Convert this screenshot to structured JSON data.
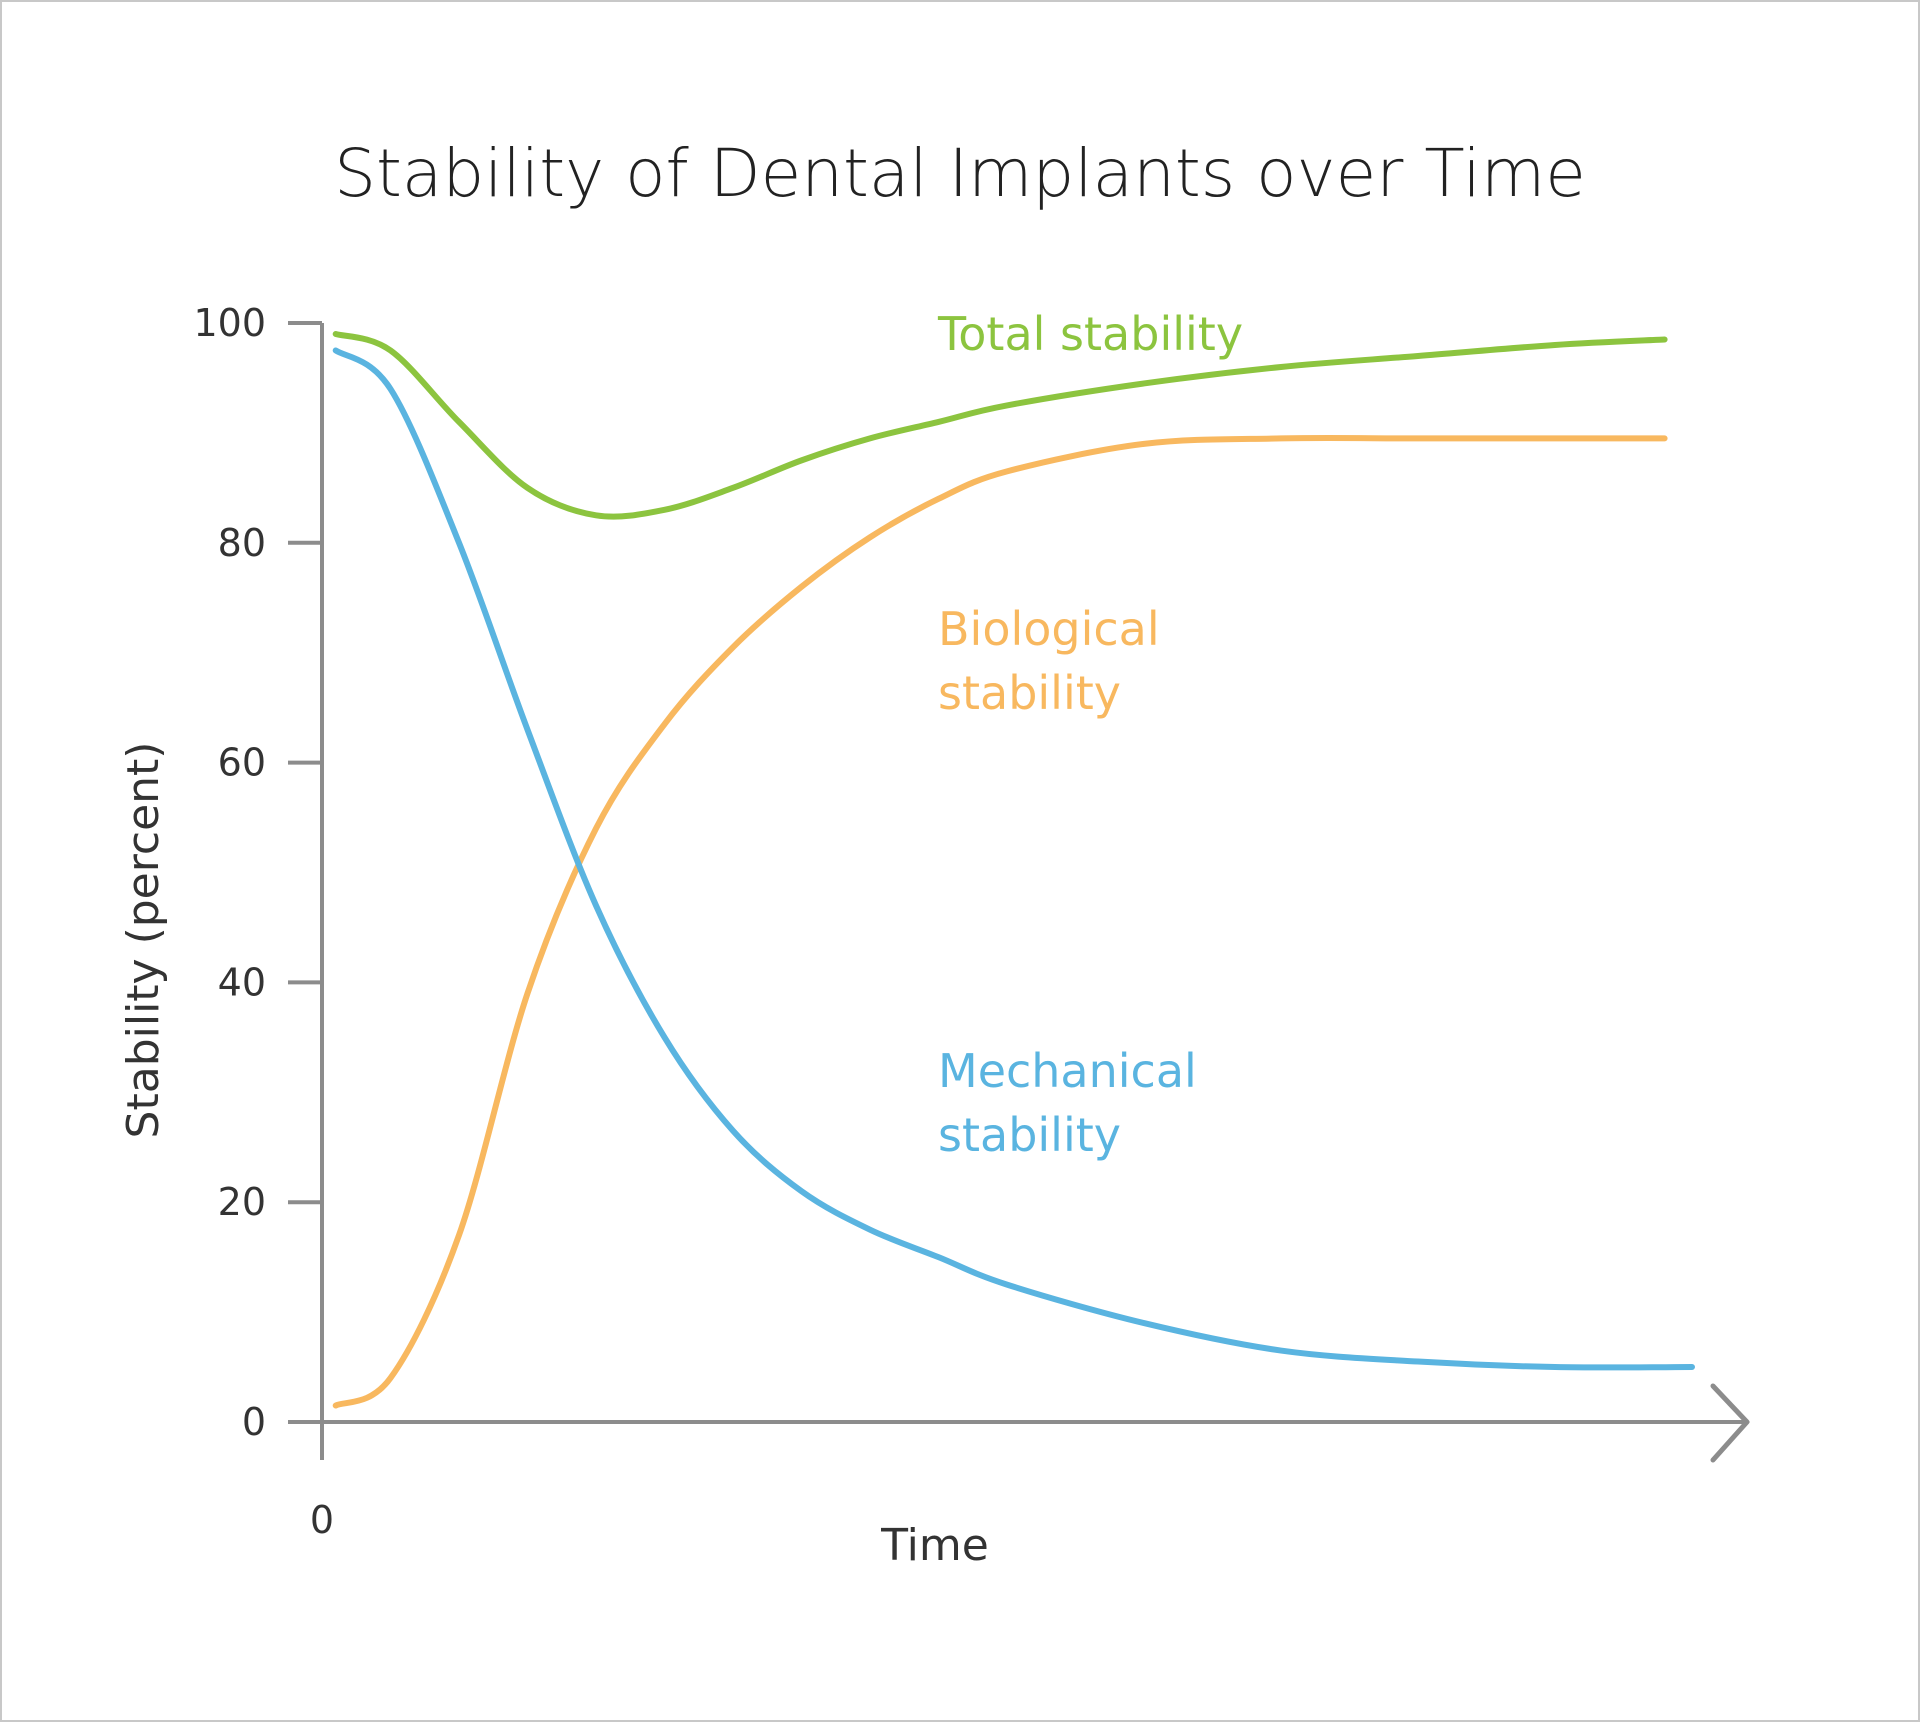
{
  "chart_data": {
    "type": "line",
    "title": "Stability of Dental Implants over Time",
    "xlabel": "Time",
    "ylabel": "Stability (percent)",
    "x_tick_labels": [
      "0"
    ],
    "y_ticks": [
      0,
      20,
      40,
      60,
      80,
      100
    ],
    "ylim": [
      0,
      100
    ],
    "grid": false,
    "series": [
      {
        "name": "Total stability",
        "label_lines": [
          "Total stability"
        ],
        "color": "#8cc43f",
        "x": [
          0.01,
          0.05,
          0.1,
          0.15,
          0.2,
          0.25,
          0.3,
          0.35,
          0.4,
          0.45,
          0.5,
          0.6,
          0.7,
          0.8,
          0.9,
          0.98
        ],
        "y": [
          99,
          97.5,
          91,
          85,
          82.5,
          83,
          85,
          87.5,
          89.5,
          91,
          92.5,
          94.5,
          96,
          97,
          98,
          98.5
        ]
      },
      {
        "name": "Biological stability",
        "label_lines": [
          "Biological",
          "stability"
        ],
        "color": "#f8b85f",
        "x": [
          0.01,
          0.05,
          0.1,
          0.15,
          0.2,
          0.25,
          0.3,
          0.35,
          0.4,
          0.45,
          0.5,
          0.6,
          0.7,
          0.8,
          0.9,
          0.98
        ],
        "y": [
          1.5,
          4,
          17,
          39,
          54,
          63.5,
          70.5,
          76,
          80.5,
          84,
          86.5,
          89,
          89.5,
          89.5,
          89.5,
          89.5
        ]
      },
      {
        "name": "Mechanical stability",
        "label_lines": [
          "Mechanical",
          "stability"
        ],
        "color": "#5ab4e0",
        "x": [
          0.01,
          0.05,
          0.1,
          0.15,
          0.2,
          0.25,
          0.3,
          0.35,
          0.4,
          0.45,
          0.5,
          0.6,
          0.7,
          0.8,
          0.9,
          1.0
        ],
        "y": [
          97.5,
          94,
          80,
          63,
          47,
          35,
          26.5,
          21,
          17.5,
          15,
          12.5,
          9,
          6.5,
          5.5,
          5,
          5
        ]
      }
    ]
  }
}
